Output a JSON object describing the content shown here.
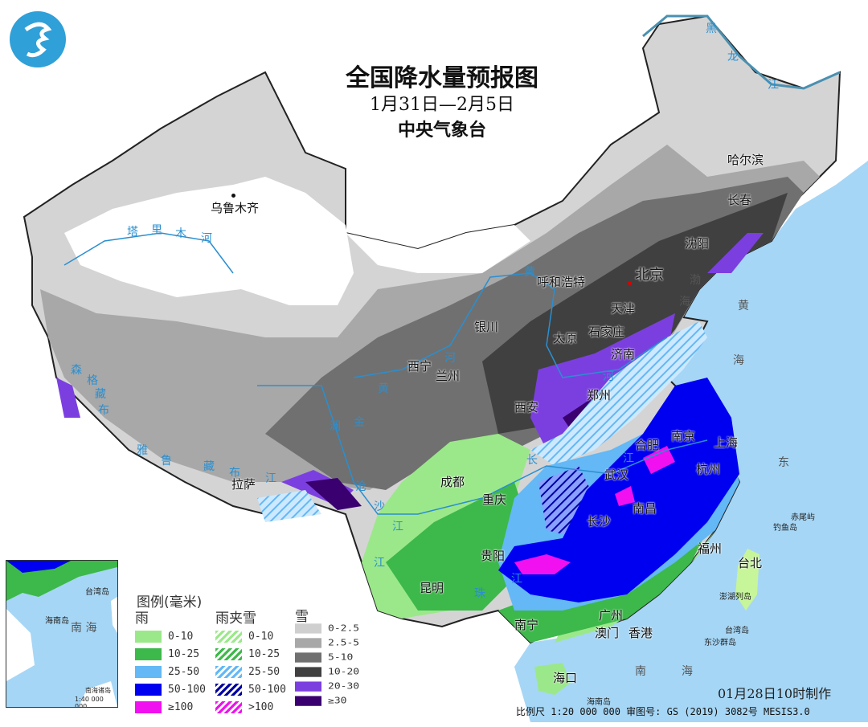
{
  "header": {
    "title": "全国降水量预报图",
    "date_range": "1月31日—2月5日",
    "issuer": "中央气象台",
    "logo": "central-meteorological-observatory-logo"
  },
  "cities": {
    "urumqi": "乌鲁木齐",
    "beijing": "北京",
    "harbin": "哈尔滨",
    "changchun": "长春",
    "shenyang": "沈阳",
    "hohhot": "呼和浩特",
    "tianjin": "天津",
    "shijiazhuang": "石家庄",
    "taiyuan": "太原",
    "jinan": "济南",
    "yinchuan": "银川",
    "xining": "西宁",
    "lanzhou": "兰州",
    "zhengzhou": "郑州",
    "xian": "西安",
    "nanjing": "南京",
    "shanghai": "上海",
    "hefei": "合肥",
    "hangzhou": "杭州",
    "wuhan": "武汉",
    "chengdu": "成都",
    "chongqing": "重庆",
    "nanchang": "南昌",
    "lhasa": "拉萨",
    "changsha": "长沙",
    "guiyang": "贵阳",
    "fuzhou": "福州",
    "taipei": "台北",
    "kunming": "昆明",
    "nanning": "南宁",
    "guangzhou": "广州",
    "macau": "澳门",
    "hongkong": "香港",
    "haikou": "海口"
  },
  "rivers": {
    "tarim": [
      "塔",
      "里",
      "木",
      "河"
    ],
    "heilong": [
      "黑",
      "龙",
      "江"
    ],
    "yellow": [
      "黄",
      "河",
      "黄",
      "河"
    ],
    "yangtze": [
      "长",
      "江",
      "江"
    ],
    "lancang": [
      "澜",
      "沧",
      "江"
    ],
    "jinsha": [
      "金",
      "沙",
      "江"
    ],
    "yarlung": [
      "雅",
      "鲁",
      "藏",
      "布",
      "江"
    ],
    "nu": [
      "森",
      "格",
      "藏",
      "布"
    ],
    "pearl": [
      "珠",
      "江"
    ]
  },
  "seas": {
    "bohai": "渤",
    "bohai2": "海",
    "yellow_sea": "黄",
    "yellow_sea2": "海",
    "east_sea": "东",
    "east_sea2": "海",
    "south_sea": "南",
    "south_sea2": "海"
  },
  "islands": {
    "chiwei": "赤尾屿",
    "diaoyu": "钓鱼岛",
    "penghu": "澎湖列岛",
    "taiwan": "台湾岛",
    "dongsha": "东沙群岛",
    "hainan": "海南岛"
  },
  "inset": {
    "taiwan": "台湾岛",
    "hainan": "海南岛",
    "south_sea": "南 海",
    "south_islands": "南海诸岛",
    "scale": "1:40 000 000"
  },
  "legend": {
    "title": "图例(毫米)",
    "rain": {
      "label": "雨",
      "items": [
        {
          "range": "0-10",
          "color": "#9be88a"
        },
        {
          "range": "10-25",
          "color": "#3db84a"
        },
        {
          "range": "25-50",
          "color": "#63b8f5"
        },
        {
          "range": "50-100",
          "color": "#0000f0"
        },
        {
          "range": "≥100",
          "color": "#f010f0"
        }
      ]
    },
    "sleet": {
      "label": "雨夹雪",
      "items": [
        {
          "range": "0-10",
          "color": "#9be88a"
        },
        {
          "range": "10-25",
          "color": "#3db84a"
        },
        {
          "range": "25-50",
          "color": "#63b8f5"
        },
        {
          "range": "50-100",
          "color": "#0000a0"
        },
        {
          "range": ">100",
          "color": "#f010f0"
        }
      ]
    },
    "snow": {
      "label": "雪",
      "items": [
        {
          "range": "0-2.5",
          "color": "#cfcfcf"
        },
        {
          "range": "2.5-5",
          "color": "#a8a8a8"
        },
        {
          "range": "5-10",
          "color": "#707070"
        },
        {
          "range": "10-20",
          "color": "#404040"
        },
        {
          "range": "20-30",
          "color": "#7b3fe0"
        },
        {
          "range": "≥30",
          "color": "#3a0070"
        }
      ]
    }
  },
  "footer": {
    "made_time": "01月28日10时制作",
    "scale": "比例尺 1:20 000 000  审图号: GS (2019) 3082号 MESIS3.0"
  }
}
